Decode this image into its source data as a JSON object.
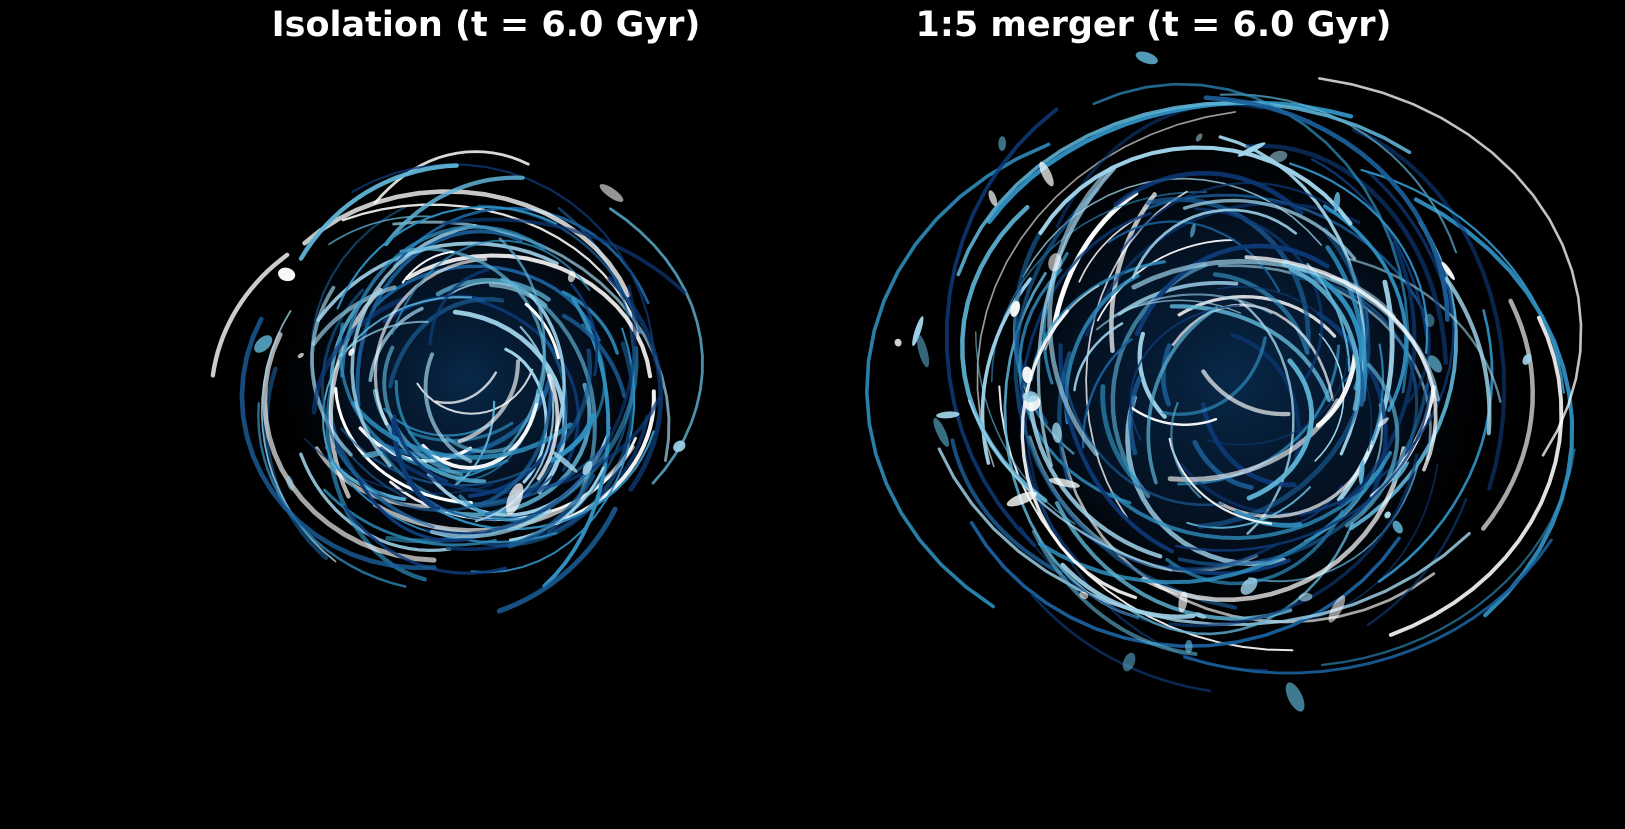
{
  "figure": {
    "background": "#000000",
    "palette": [
      "#ffffff",
      "#9fd3ea",
      "#5fb4d6",
      "#2f8fbf",
      "#1a5f9a",
      "#0d3a78"
    ]
  },
  "panels": [
    {
      "title": "Isolation (t = 6.0 Gyr)",
      "seed": 11
    },
    {
      "title": "1:5 merger (t = 6.0 Gyr)",
      "seed": 29
    }
  ]
}
